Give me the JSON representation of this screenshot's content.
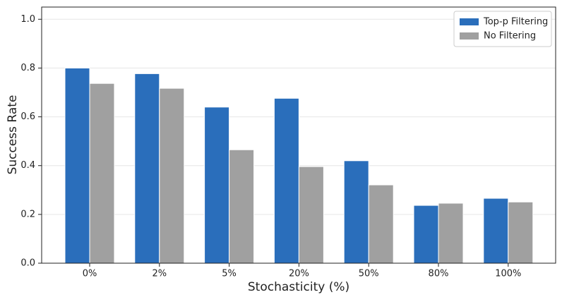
{
  "chart_data": {
    "type": "bar",
    "xlabel": "Stochasticity (%)",
    "ylabel": "Success Rate",
    "categories": [
      "0%",
      "2%",
      "5%",
      "20%",
      "50%",
      "80%",
      "100%"
    ],
    "series": [
      {
        "name": "Top-p Filtering",
        "color": "#2a6ebb",
        "values": [
          0.8,
          0.777,
          0.64,
          0.676,
          0.42,
          0.237,
          0.266
        ]
      },
      {
        "name": "No Filtering",
        "color": "#a0a0a0",
        "values": [
          0.737,
          0.717,
          0.465,
          0.396,
          0.321,
          0.246,
          0.251
        ]
      }
    ],
    "ylim": [
      0,
      1.05
    ],
    "yticks": [
      {
        "value": 0,
        "label": "0.0"
      },
      0.2,
      0.4,
      0.6,
      0.8,
      {
        "value": 1,
        "label": "1.0"
      }
    ],
    "grid": true,
    "legend": "upper right"
  }
}
